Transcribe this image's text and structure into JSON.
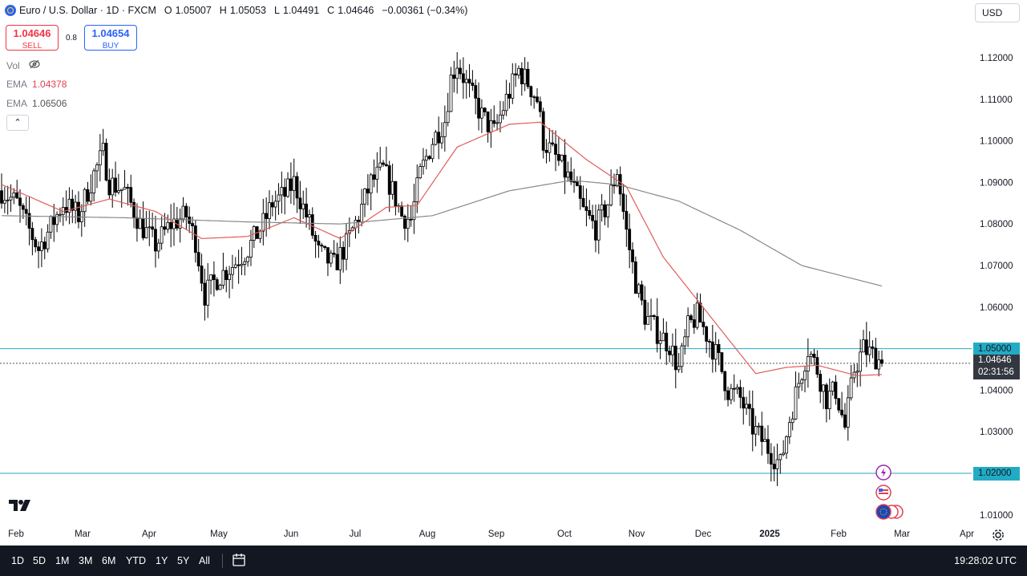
{
  "header": {
    "symbol": "Euro / U.S. Dollar · 1D · FXCM",
    "open_label": "O",
    "open": "1.05007",
    "high_label": "H",
    "high": "1.05053",
    "low_label": "L",
    "low": "1.04491",
    "close_label": "C",
    "close": "1.04646",
    "change": "−0.00361 (−0.34%)"
  },
  "trade": {
    "sell_price": "1.04646",
    "sell_label": "SELL",
    "spread": "0.8",
    "buy_price": "1.04654",
    "buy_label": "BUY"
  },
  "indicators": {
    "vol_label": "Vol",
    "ema1_label": "EMA",
    "ema1_value": "1.04378",
    "ema2_label": "EMA",
    "ema2_value": "1.06506",
    "collapse_glyph": "⌃"
  },
  "currency": "USD",
  "logo": "17",
  "price_tags": {
    "level_high": "1.05000",
    "last": "1.04646",
    "countdown": "02:31:56",
    "level_low": "1.02000"
  },
  "bottom_bar": {
    "ranges": [
      "1D",
      "5D",
      "1M",
      "3M",
      "6M",
      "YTD",
      "1Y",
      "5Y",
      "All"
    ],
    "clock": "19:28:02 UTC"
  },
  "colors": {
    "ema_fast": "#e05c5c",
    "ema_slow": "#888888",
    "hline": "#26a6c9",
    "tag_bg": "#22abc4",
    "last_tag_bg": "#333740"
  },
  "chart_data": {
    "type": "candlestick",
    "x_ticks": [
      "Feb",
      "Mar",
      "Apr",
      "May",
      "Jun",
      "Jul",
      "Aug",
      "Sep",
      "Oct",
      "Nov",
      "Dec",
      "2025",
      "Feb",
      "Mar",
      "Apr"
    ],
    "y_ticks": [
      "1.12000",
      "1.11000",
      "1.10000",
      "1.09000",
      "1.08000",
      "1.07000",
      "1.06000",
      "1.05000",
      "1.04000",
      "1.03000",
      "1.02000",
      "1.01000"
    ],
    "ylim": [
      1.0075,
      1.122
    ],
    "horizontal_lines": [
      1.05,
      1.02
    ],
    "last_price": 1.04646,
    "price_path": [
      [
        0,
        1.088
      ],
      [
        5,
        1.085
      ],
      [
        8,
        1.08
      ],
      [
        12,
        1.074
      ],
      [
        15,
        1.078
      ],
      [
        20,
        1.085
      ],
      [
        25,
        1.082
      ],
      [
        30,
        1.092
      ],
      [
        33,
        1.097
      ],
      [
        35,
        1.09
      ],
      [
        40,
        1.088
      ],
      [
        45,
        1.08
      ],
      [
        50,
        1.075
      ],
      [
        55,
        1.08
      ],
      [
        60,
        1.082
      ],
      [
        63,
        1.076
      ],
      [
        66,
        1.063
      ],
      [
        70,
        1.067
      ],
      [
        75,
        1.07
      ],
      [
        80,
        1.074
      ],
      [
        85,
        1.08
      ],
      [
        88,
        1.085
      ],
      [
        92,
        1.087
      ],
      [
        95,
        1.09
      ],
      [
        100,
        1.08
      ],
      [
        103,
        1.073
      ],
      [
        108,
        1.07
      ],
      [
        112,
        1.075
      ],
      [
        116,
        1.082
      ],
      [
        120,
        1.09
      ],
      [
        124,
        1.093
      ],
      [
        127,
        1.088
      ],
      [
        130,
        1.082
      ],
      [
        133,
        1.081
      ],
      [
        136,
        1.092
      ],
      [
        140,
        1.1
      ],
      [
        144,
        1.105
      ],
      [
        146,
        1.115
      ],
      [
        148,
        1.119
      ],
      [
        152,
        1.112
      ],
      [
        156,
        1.106
      ],
      [
        160,
        1.102
      ],
      [
        164,
        1.11
      ],
      [
        168,
        1.117
      ],
      [
        171,
        1.114
      ],
      [
        174,
        1.11
      ],
      [
        176,
        1.1
      ],
      [
        180,
        1.096
      ],
      [
        185,
        1.09
      ],
      [
        189,
        1.083
      ],
      [
        193,
        1.079
      ],
      [
        197,
        1.085
      ],
      [
        200,
        1.093
      ],
      [
        203,
        1.078
      ],
      [
        206,
        1.066
      ],
      [
        209,
        1.058
      ],
      [
        213,
        1.054
      ],
      [
        217,
        1.051
      ],
      [
        220,
        1.045
      ],
      [
        223,
        1.055
      ],
      [
        226,
        1.058
      ],
      [
        230,
        1.052
      ],
      [
        233,
        1.047
      ],
      [
        236,
        1.04
      ],
      [
        240,
        1.038
      ],
      [
        244,
        1.031
      ],
      [
        247,
        1.028
      ],
      [
        250,
        1.025
      ],
      [
        253,
        1.022
      ],
      [
        256,
        1.033
      ],
      [
        259,
        1.042
      ],
      [
        262,
        1.05
      ],
      [
        265,
        1.045
      ],
      [
        268,
        1.038
      ],
      [
        271,
        1.04
      ],
      [
        274,
        1.031
      ],
      [
        277,
        1.045
      ],
      [
        280,
        1.05
      ],
      [
        284,
        1.048
      ],
      [
        286,
        1.04646
      ]
    ],
    "ema_fast": [
      [
        0,
        1.0895
      ],
      [
        20,
        1.083
      ],
      [
        35,
        1.086
      ],
      [
        50,
        1.083
      ],
      [
        65,
        1.0765
      ],
      [
        80,
        1.077
      ],
      [
        95,
        1.0815
      ],
      [
        110,
        1.0765
      ],
      [
        125,
        1.084
      ],
      [
        135,
        1.0845
      ],
      [
        148,
        1.0985
      ],
      [
        165,
        1.104
      ],
      [
        175,
        1.1045
      ],
      [
        190,
        1.0955
      ],
      [
        203,
        1.089
      ],
      [
        215,
        1.072
      ],
      [
        230,
        1.058
      ],
      [
        245,
        1.044
      ],
      [
        255,
        1.0455
      ],
      [
        265,
        1.046
      ],
      [
        278,
        1.0435
      ],
      [
        286,
        1.04378
      ]
    ],
    "ema_slow": [
      [
        0,
        1.082
      ],
      [
        40,
        1.0815
      ],
      [
        80,
        1.0805
      ],
      [
        110,
        1.08
      ],
      [
        140,
        1.082
      ],
      [
        165,
        1.088
      ],
      [
        185,
        1.0905
      ],
      [
        200,
        1.0895
      ],
      [
        220,
        1.0855
      ],
      [
        240,
        1.0785
      ],
      [
        260,
        1.07
      ],
      [
        286,
        1.06506
      ]
    ],
    "n_bars": 287
  }
}
